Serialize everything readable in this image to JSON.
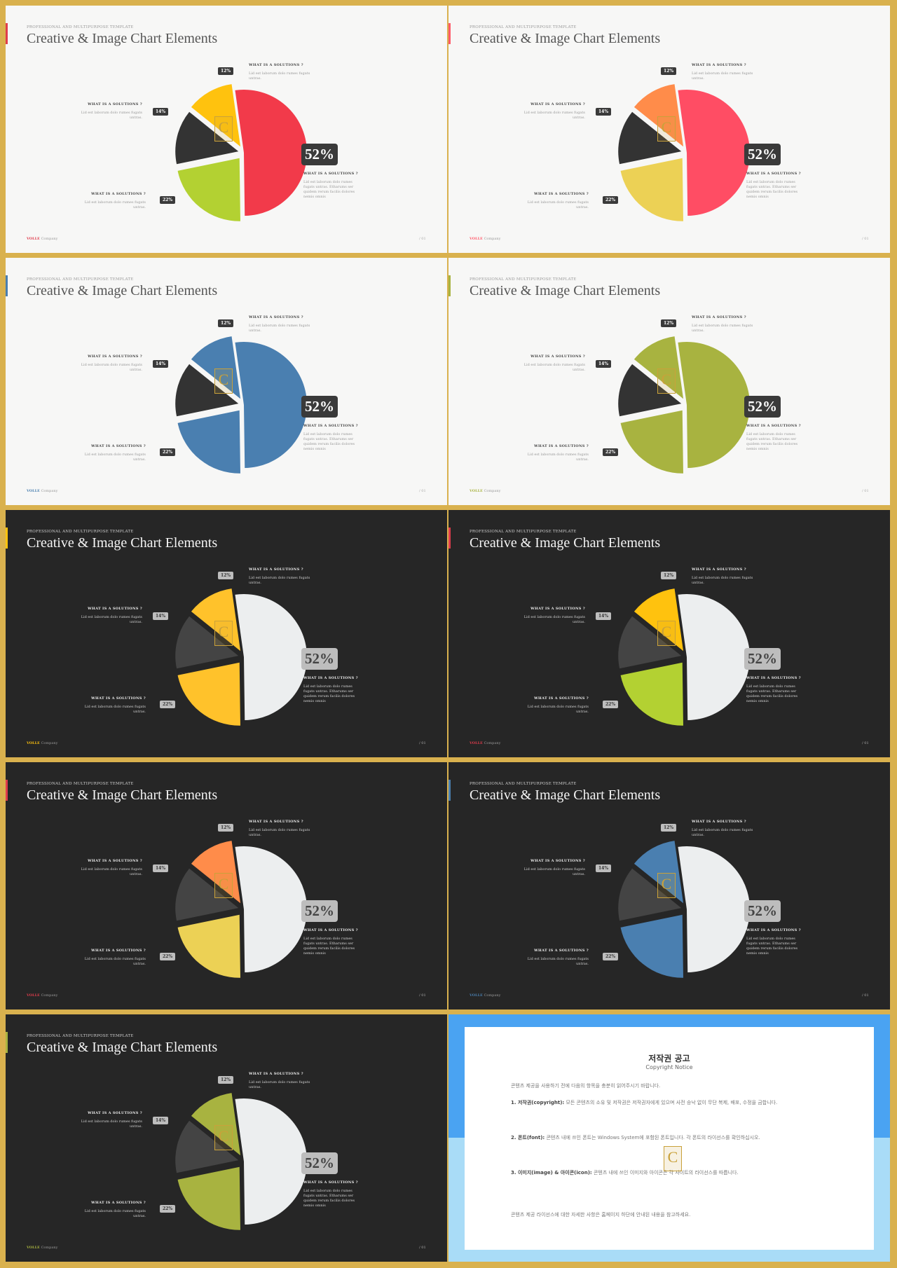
{
  "slides": [
    {
      "theme": "light",
      "accent": "#e03c4c",
      "colors": {
        "big": "#f23a4a",
        "left": "#b3d132",
        "top": "#ffc20e",
        "dark": "#333333"
      }
    },
    {
      "theme": "light",
      "accent": "#ff5a6a",
      "colors": {
        "big": "#ff4d64",
        "left": "#ecd155",
        "top": "#ff8c4a",
        "dark": "#333333"
      }
    },
    {
      "theme": "light",
      "accent": "#4a7fb0",
      "colors": {
        "big": "#4a7fb0",
        "left": "#4a7fb0",
        "top": "#4a7fb0",
        "dark": "#333333"
      }
    },
    {
      "theme": "light",
      "accent": "#a8b340",
      "colors": {
        "big": "#a8b340",
        "left": "#a8b340",
        "top": "#a8b340",
        "dark": "#333333"
      }
    },
    {
      "theme": "dark",
      "accent": "#ffc20e",
      "colors": {
        "big": "#eceeef",
        "left": "#ffc22b",
        "top": "#ffc22b",
        "dark": "#444444"
      }
    },
    {
      "theme": "dark",
      "accent": "#e03c4c",
      "colors": {
        "big": "#eceeef",
        "left": "#b3d132",
        "top": "#ffc20e",
        "dark": "#444444"
      }
    },
    {
      "theme": "dark",
      "accent": "#e03c4c",
      "colors": {
        "big": "#eceeef",
        "left": "#ecd155",
        "top": "#ff8c4a",
        "dark": "#444444"
      }
    },
    {
      "theme": "dark",
      "accent": "#4a7fb0",
      "colors": {
        "big": "#eceeef",
        "left": "#4a7fb0",
        "top": "#4a7fb0",
        "dark": "#444444"
      }
    },
    {
      "theme": "dark",
      "accent": "#a8b340",
      "colors": {
        "big": "#eceeef",
        "left": "#a8b340",
        "top": "#a8b340",
        "dark": "#444444"
      }
    }
  ],
  "template": {
    "kicker": "PROFESSIONAL AND MULTIPURPOSE  TEMPLATE",
    "title": "Creative & Image Chart Elements",
    "solution_heading": "WHAT IS A SOLUTIONS ?",
    "short_text": "Lid est laborum dolo rumes fugats untras.",
    "long_text": "Lid est laborum dolo rumes fugats untras. Etharums ser quidem rerum facilis dolores nemis omnis",
    "footer_brand": "VOLLE",
    "footer_company": "Company",
    "page_number": "/ 01",
    "logo_letter": "C"
  },
  "chart_data": {
    "type": "pie",
    "values": [
      52,
      22,
      14,
      12
    ],
    "labels": [
      "52%",
      "22%",
      "14%",
      "12%"
    ]
  },
  "notice": {
    "title": "저작권 공고",
    "subtitle": "Copyright Notice",
    "intro": "콘텐츠 제공을 사용하기 전에 다음의 항목을 충분히 읽어주시기 바랍니다.",
    "p1_head": "1. 저작권(copyright):",
    "p1_body": "모든 콘텐츠의 소유 및 저작권은 저작권자에게 있으며 사전 승낙 없이 무단 복제, 배포, 수정을 금합니다.",
    "p2_head": "2. 폰트(font):",
    "p2_body": "콘텐츠 내에 쓰인 폰트는 Windows System에 포함된 폰트입니다. 각 폰트의 라이선스를 확인하십시오.",
    "p3_head": "3. 이미지(image) & 아이콘(icon):",
    "p3_body": "콘텐츠 내에 쓰인 이미지와 아이콘은 각 사이트의 라이선스를 따릅니다.",
    "outro": "콘텐츠 제공 라이선스에 대한 자세한 사항은 홈페이지 하단에 안내된 내용을 참고하세요."
  }
}
